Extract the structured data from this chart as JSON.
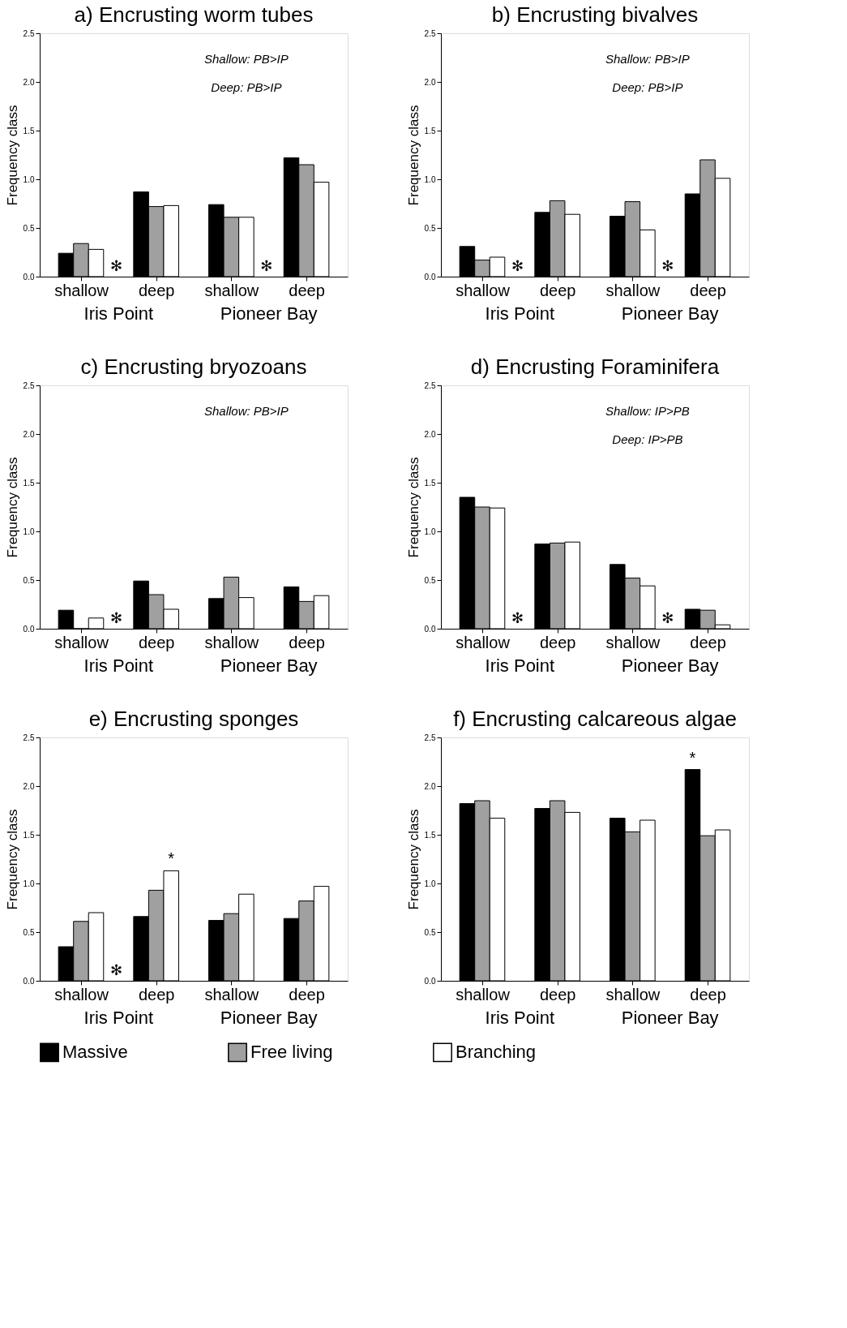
{
  "chart_data": [
    {
      "type": "bar",
      "title": "a)  Encrusting worm tubes",
      "ylabel": "Frequency class",
      "categories": [
        "shallow",
        "deep",
        "shallow",
        "deep"
      ],
      "series": [
        {
          "name": "Massive",
          "color": "#000000",
          "values": [
            0.24,
            0.87,
            0.74,
            1.22
          ]
        },
        {
          "name": "Free living",
          "color": "#a0a0a0",
          "values": [
            0.34,
            0.72,
            0.61,
            1.15
          ]
        },
        {
          "name": "Branching",
          "color": "#ffffff",
          "values": [
            0.28,
            0.73,
            0.61,
            0.97
          ]
        }
      ],
      "ylim": [
        0,
        2.5
      ],
      "yticks": [
        {
          "value": 0,
          "label": "0.0"
        },
        0.5,
        {
          "value": 1,
          "label": "1.0"
        },
        1.5,
        {
          "value": 2,
          "label": "2.0"
        },
        2.5
      ],
      "grid": false,
      "legend": "bottom",
      "annotations": [
        "Iris Point",
        "Pioneer Bay",
        "Shallow:  PB>IP",
        "Deep:  PB>IP",
        "✻",
        "✻"
      ]
    },
    {
      "type": "bar",
      "title": "b)  Encrusting bivalves",
      "ylabel": "Frequency class",
      "categories": [
        "shallow",
        "deep",
        "shallow",
        "deep"
      ],
      "series": [
        {
          "name": "Massive",
          "color": "#000000",
          "values": [
            0.31,
            0.66,
            0.62,
            0.85
          ]
        },
        {
          "name": "Free living",
          "color": "#a0a0a0",
          "values": [
            0.17,
            0.78,
            0.77,
            1.2
          ]
        },
        {
          "name": "Branching",
          "color": "#ffffff",
          "values": [
            0.2,
            0.64,
            0.48,
            1.01
          ]
        }
      ],
      "ylim": [
        0,
        2.5
      ],
      "yticks": [
        {
          "value": 0,
          "label": "0.0"
        },
        0.5,
        {
          "value": 1,
          "label": "1.0"
        },
        1.5,
        {
          "value": 2,
          "label": "2.0"
        },
        2.5
      ],
      "grid": false,
      "legend": "bottom",
      "annotations": [
        "Iris Point",
        "Pioneer Bay",
        "Shallow:  PB>IP",
        "Deep:  PB>IP",
        "✻",
        "✻"
      ]
    },
    {
      "type": "bar",
      "title": "c)  Encrusting bryozoans",
      "ylabel": "Frequency class",
      "categories": [
        "shallow",
        "deep",
        "shallow",
        "deep"
      ],
      "series": [
        {
          "name": "Massive",
          "color": "#000000",
          "values": [
            0.19,
            0.49,
            0.31,
            0.43
          ]
        },
        {
          "name": "Free living",
          "color": "#a0a0a0",
          "values": [
            0,
            0.35,
            0.53,
            0.28
          ]
        },
        {
          "name": "Branching",
          "color": "#ffffff",
          "values": [
            0.11,
            0.2,
            0.32,
            0.34
          ]
        }
      ],
      "ylim": [
        0,
        2.5
      ],
      "yticks": [
        {
          "value": 0,
          "label": "0.0"
        },
        0.5,
        {
          "value": 1,
          "label": "1.0"
        },
        1.5,
        {
          "value": 2,
          "label": "2.0"
        },
        2.5
      ],
      "grid": false,
      "legend": "bottom",
      "annotations": [
        "Iris Point",
        "Pioneer Bay",
        "Shallow:    PB>IP",
        "✻"
      ]
    },
    {
      "type": "bar",
      "title": "d)  Encrusting Foraminifera",
      "ylabel": "Frequency class",
      "categories": [
        "shallow",
        "deep",
        "shallow",
        "deep"
      ],
      "series": [
        {
          "name": "Massive",
          "color": "#000000",
          "values": [
            1.35,
            0.87,
            0.66,
            0.2
          ]
        },
        {
          "name": "Free living",
          "color": "#a0a0a0",
          "values": [
            1.25,
            0.88,
            0.52,
            0.19
          ]
        },
        {
          "name": "Branching",
          "color": "#ffffff",
          "values": [
            1.24,
            0.89,
            0.44,
            0.04
          ]
        }
      ],
      "ylim": [
        0,
        2.5
      ],
      "yticks": [
        {
          "value": 0,
          "label": "0.0"
        },
        0.5,
        {
          "value": 1,
          "label": "1.0"
        },
        1.5,
        {
          "value": 2,
          "label": "2.0"
        },
        2.5
      ],
      "grid": false,
      "legend": "bottom",
      "annotations": [
        "Iris Point",
        "Pioneer Bay",
        "Shallow:  IP>PB",
        "Deep:  IP>PB",
        "✻",
        "✻"
      ]
    },
    {
      "type": "bar",
      "title": "e)  Encrusting sponges",
      "ylabel": "Frequency class",
      "categories": [
        "shallow",
        "deep",
        "shallow",
        "deep"
      ],
      "series": [
        {
          "name": "Massive",
          "color": "#000000",
          "values": [
            0.35,
            0.66,
            0.62,
            0.64
          ]
        },
        {
          "name": "Free living",
          "color": "#a0a0a0",
          "values": [
            0.61,
            0.93,
            0.69,
            0.82
          ]
        },
        {
          "name": "Branching",
          "color": "#ffffff",
          "values": [
            0.7,
            1.13,
            0.89,
            0.97
          ]
        }
      ],
      "ylim": [
        0,
        2.5
      ],
      "yticks": [
        {
          "value": 0,
          "label": "0.0"
        },
        0.5,
        {
          "value": 1,
          "label": "1.0"
        },
        1.5,
        {
          "value": 2,
          "label": "2.0"
        },
        2.5
      ],
      "grid": false,
      "legend": "bottom",
      "annotations": [
        "Iris Point",
        "Pioneer Bay",
        "✻",
        "*"
      ]
    },
    {
      "type": "bar",
      "title": "f)  Encrusting calcareous algae",
      "ylabel": "Frequency class",
      "categories": [
        "shallow",
        "deep",
        "shallow",
        "deep"
      ],
      "series": [
        {
          "name": "Massive",
          "color": "#000000",
          "values": [
            1.82,
            1.77,
            1.67,
            2.17
          ]
        },
        {
          "name": "Free living",
          "color": "#a0a0a0",
          "values": [
            1.85,
            1.85,
            1.53,
            1.49
          ]
        },
        {
          "name": "Branching",
          "color": "#ffffff",
          "values": [
            1.67,
            1.73,
            1.65,
            1.55
          ]
        }
      ],
      "ylim": [
        0,
        2.5
      ],
      "yticks": [
        {
          "value": 0,
          "label": "0.0"
        },
        0.5,
        {
          "value": 1,
          "label": "1.0"
        },
        1.5,
        {
          "value": 2,
          "label": "2.0"
        },
        2.5
      ],
      "grid": false,
      "legend": "bottom",
      "annotations": [
        "Iris Point",
        "Pioneer Bay",
        "*"
      ]
    }
  ]
}
